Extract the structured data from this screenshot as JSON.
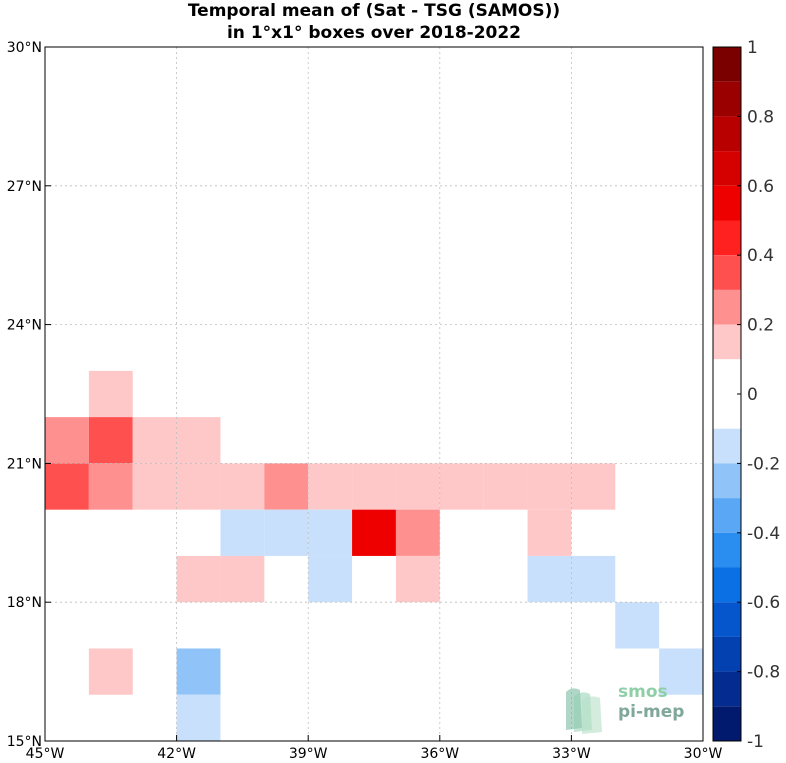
{
  "title": {
    "line1": "Temporal mean of (Sat - TSG (SAMOS))",
    "line2": "in 1°x1° boxes over 2018-2022"
  },
  "logo": {
    "line1": "smos",
    "line2": "pi-mep"
  },
  "chart_data": {
    "type": "heatmap",
    "title": "Temporal mean of (Sat - TSG (SAMOS)) in 1°x1° boxes over 2018-2022",
    "xlabel": "",
    "ylabel": "",
    "xlim": [
      -45,
      -30
    ],
    "ylim": [
      15,
      30
    ],
    "grid": true,
    "x_ticks": [
      {
        "value": -45,
        "label": "45°W"
      },
      {
        "value": -42,
        "label": "42°W"
      },
      {
        "value": -39,
        "label": "39°W"
      },
      {
        "value": -36,
        "label": "36°W"
      },
      {
        "value": -33,
        "label": "33°W"
      },
      {
        "value": -30,
        "label": "30°W"
      }
    ],
    "y_ticks": [
      {
        "value": 15,
        "label": "15°N"
      },
      {
        "value": 18,
        "label": "18°N"
      },
      {
        "value": 21,
        "label": "21°N"
      },
      {
        "value": 24,
        "label": "24°N"
      },
      {
        "value": 27,
        "label": "27°N"
      },
      {
        "value": 30,
        "label": "30°N"
      }
    ],
    "cells": [
      {
        "lon": -44,
        "lat": 22,
        "value": 0.15
      },
      {
        "lon": -45,
        "lat": 21,
        "value": 0.25
      },
      {
        "lon": -44,
        "lat": 21,
        "value": 0.35
      },
      {
        "lon": -43,
        "lat": 21,
        "value": 0.15
      },
      {
        "lon": -42,
        "lat": 21,
        "value": 0.15
      },
      {
        "lon": -45,
        "lat": 20,
        "value": 0.35
      },
      {
        "lon": -44,
        "lat": 20,
        "value": 0.25
      },
      {
        "lon": -43,
        "lat": 20,
        "value": 0.15
      },
      {
        "lon": -42,
        "lat": 20,
        "value": 0.15
      },
      {
        "lon": -41,
        "lat": 20,
        "value": 0.15
      },
      {
        "lon": -40,
        "lat": 20,
        "value": 0.25
      },
      {
        "lon": -39,
        "lat": 20,
        "value": 0.15
      },
      {
        "lon": -38,
        "lat": 20,
        "value": 0.15
      },
      {
        "lon": -37,
        "lat": 20,
        "value": 0.15
      },
      {
        "lon": -36,
        "lat": 20,
        "value": 0.15
      },
      {
        "lon": -35,
        "lat": 20,
        "value": 0.15
      },
      {
        "lon": -34,
        "lat": 20,
        "value": 0.15
      },
      {
        "lon": -33,
        "lat": 20,
        "value": 0.15
      },
      {
        "lon": -41,
        "lat": 19,
        "value": -0.15
      },
      {
        "lon": -40,
        "lat": 19,
        "value": -0.15
      },
      {
        "lon": -39,
        "lat": 19,
        "value": -0.15
      },
      {
        "lon": -38,
        "lat": 19,
        "value": 0.55
      },
      {
        "lon": -37,
        "lat": 19,
        "value": 0.25
      },
      {
        "lon": -34,
        "lat": 19,
        "value": 0.15
      },
      {
        "lon": -42,
        "lat": 18,
        "value": 0.15
      },
      {
        "lon": -41,
        "lat": 18,
        "value": 0.15
      },
      {
        "lon": -39,
        "lat": 18,
        "value": -0.15
      },
      {
        "lon": -37,
        "lat": 18,
        "value": 0.15
      },
      {
        "lon": -34,
        "lat": 18,
        "value": -0.15
      },
      {
        "lon": -33,
        "lat": 18,
        "value": -0.15
      },
      {
        "lon": -32,
        "lat": 17,
        "value": -0.15
      },
      {
        "lon": -44,
        "lat": 16,
        "value": 0.15
      },
      {
        "lon": -42,
        "lat": 16,
        "value": -0.25
      },
      {
        "lon": -31,
        "lat": 16,
        "value": -0.15
      },
      {
        "lon": -42,
        "lat": 15,
        "value": -0.15
      }
    ],
    "colorbar": {
      "min": -1,
      "max": 1,
      "step": 0.1,
      "tick_labels": [
        "1",
        "0.8",
        "0.6",
        "0.4",
        "0.2",
        "0",
        "-0.2",
        "-0.4",
        "-0.6",
        "-0.8",
        "-1"
      ],
      "tick_values": [
        1,
        0.8,
        0.6,
        0.4,
        0.2,
        0,
        -0.2,
        -0.4,
        -0.6,
        -0.8,
        -1
      ],
      "colors_top_to_bottom": [
        "#7a0000",
        "#9a0000",
        "#b80000",
        "#d50000",
        "#ef0000",
        "#ff2020",
        "#ff5050",
        "#ff9090",
        "#ffc8c8",
        "#ffffff",
        "#ffffff",
        "#c8e0fb",
        "#90c4f8",
        "#5aa8f5",
        "#2a8ef0",
        "#0a70e4",
        "#0555cc",
        "#0340b0",
        "#032b90",
        "#021a6e"
      ]
    }
  }
}
